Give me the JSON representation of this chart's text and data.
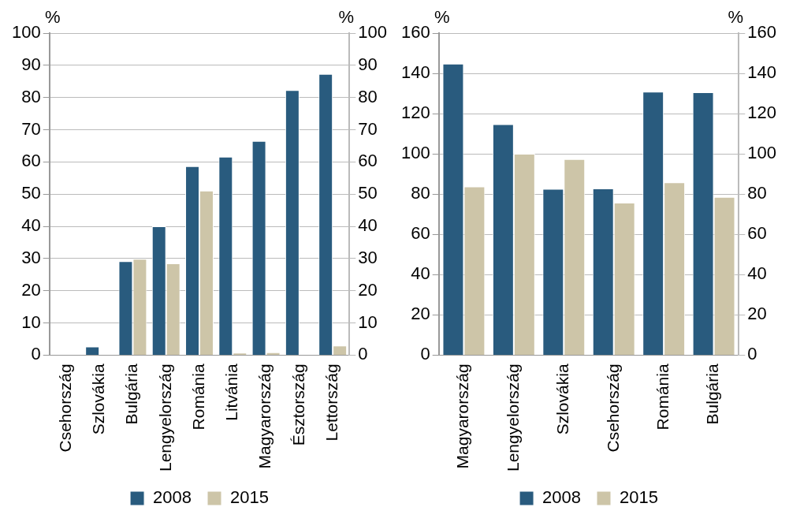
{
  "chart_data": [
    {
      "type": "bar",
      "ylabel": "%",
      "y2label": "%",
      "categories": [
        "Csehország",
        "Szlovákia",
        "Bulgária",
        "Lengyelország",
        "Románia",
        "Litvánia",
        "Magyarország",
        "Észtország",
        "Lettország"
      ],
      "series": [
        {
          "name": "2008",
          "color": "#295b7e",
          "values": [
            0,
            2.7,
            29.2,
            40.0,
            58.7,
            61.6,
            66.5,
            82.3,
            87.3
          ]
        },
        {
          "name": "2015",
          "color": "#cdc5a8",
          "values": [
            0,
            0,
            29.9,
            28.5,
            51.1,
            0.8,
            0.9,
            0,
            3.0
          ]
        }
      ],
      "ylim": [
        0,
        100
      ],
      "yticks": [
        0,
        10,
        20,
        30,
        40,
        50,
        60,
        70,
        80,
        90,
        100
      ],
      "y2lim": [
        0,
        100
      ],
      "y2ticks": [
        0,
        10,
        20,
        30,
        40,
        50,
        60,
        70,
        80,
        90,
        100
      ],
      "grid": "y",
      "legend": "bottom"
    },
    {
      "type": "bar",
      "ylabel": "%",
      "y2label": "%",
      "categories": [
        "Magyarország",
        "Lengyelország",
        "Szlovákia",
        "Csehország",
        "Románia",
        "Bulgária"
      ],
      "series": [
        {
          "name": "2008",
          "color": "#295b7e",
          "values": [
            144.8,
            114.8,
            82.6,
            82.8,
            130.9,
            130.6
          ]
        },
        {
          "name": "2015",
          "color": "#cdc5a8",
          "values": [
            83.8,
            100.1,
            97.4,
            75.8,
            85.9,
            78.6
          ]
        }
      ],
      "ylim": [
        0,
        160
      ],
      "yticks": [
        0,
        20,
        40,
        60,
        80,
        100,
        120,
        140,
        160
      ],
      "y2lim": [
        0,
        160
      ],
      "y2ticks": [
        0,
        20,
        40,
        60,
        80,
        100,
        120,
        140,
        160
      ],
      "grid": "y",
      "legend": "bottom"
    }
  ]
}
